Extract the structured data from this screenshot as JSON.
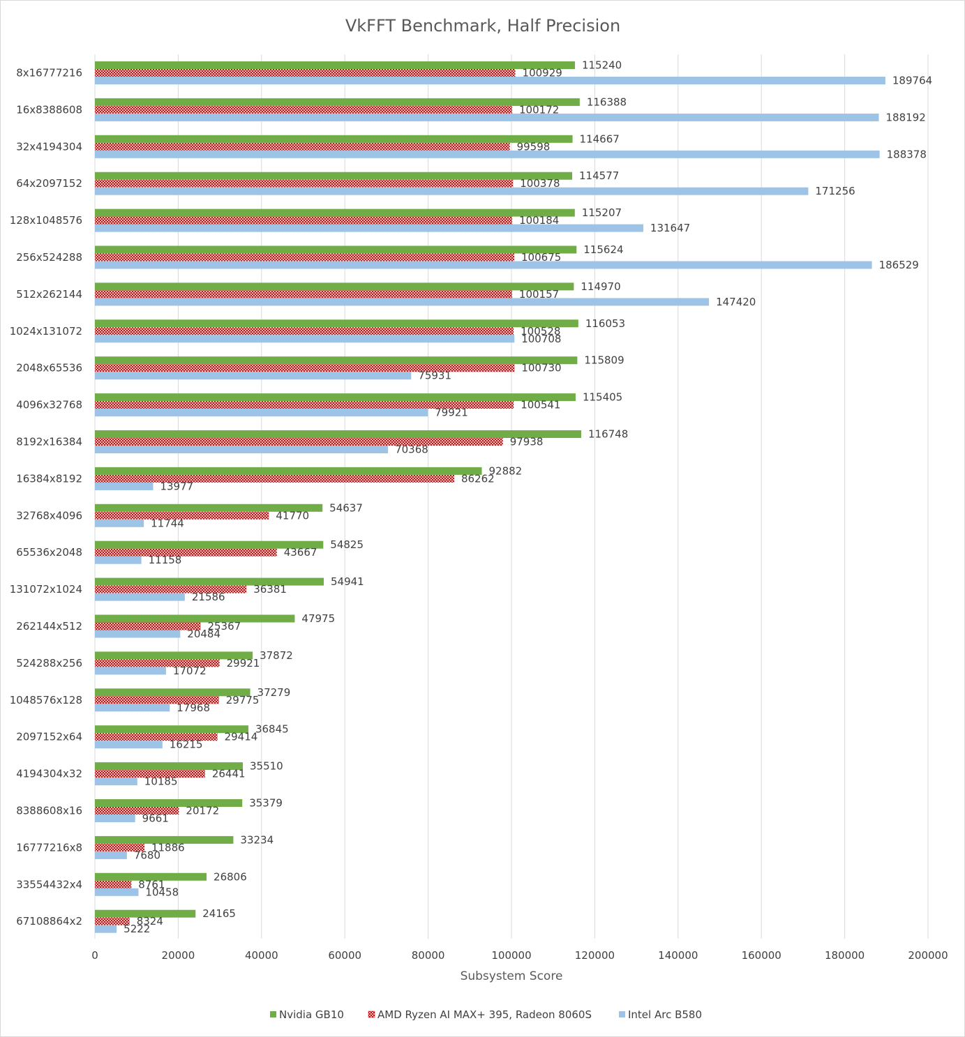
{
  "chart_data": {
    "type": "bar",
    "orientation": "horizontal",
    "title": "VkFFT Benchmark, Half Precision",
    "xlabel": "Subsystem Score",
    "ylabel": "",
    "xlim": [
      0,
      200000
    ],
    "xticks": [
      0,
      20000,
      40000,
      60000,
      80000,
      100000,
      120000,
      140000,
      160000,
      180000,
      200000
    ],
    "grid": true,
    "legend_position": "bottom",
    "categories": [
      "8x16777216",
      "16x8388608",
      "32x4194304",
      "64x2097152",
      "128x1048576",
      "256x524288",
      "512x262144",
      "1024x131072",
      "2048x65536",
      "4096x32768",
      "8192x16384",
      "16384x8192",
      "32768x4096",
      "65536x2048",
      "131072x1024",
      "262144x512",
      "524288x256",
      "1048576x128",
      "2097152x64",
      "4194304x32",
      "8388608x16",
      "16777216x8",
      "33554432x4",
      "67108864x2"
    ],
    "series": [
      {
        "name": "Nvidia GB10",
        "color": "#70ad47",
        "pattern": "solid",
        "values": [
          115240,
          116388,
          114667,
          114577,
          115207,
          115624,
          114970,
          116053,
          115809,
          115405,
          116748,
          92882,
          54637,
          54825,
          54941,
          47975,
          37872,
          37279,
          36845,
          35510,
          35379,
          33234,
          26806,
          24165
        ]
      },
      {
        "name": "AMD Ryzen AI MAX+ 395, Radeon 8060S",
        "color": "#c00000",
        "pattern": "crosshatch",
        "values": [
          100929,
          100172,
          99598,
          100378,
          100184,
          100675,
          100157,
          100528,
          100730,
          100541,
          97938,
          86262,
          41770,
          43667,
          36381,
          25367,
          29921,
          29775,
          29414,
          26441,
          20172,
          11886,
          8761,
          8324
        ]
      },
      {
        "name": "Intel Arc B580",
        "color": "#9dc3e6",
        "pattern": "solid",
        "values": [
          189764,
          188192,
          188378,
          171256,
          131647,
          186529,
          147420,
          100708,
          75931,
          79921,
          70368,
          13977,
          11744,
          11158,
          21586,
          20484,
          17072,
          17968,
          16215,
          10185,
          9661,
          7680,
          10458,
          5222
        ]
      }
    ]
  }
}
